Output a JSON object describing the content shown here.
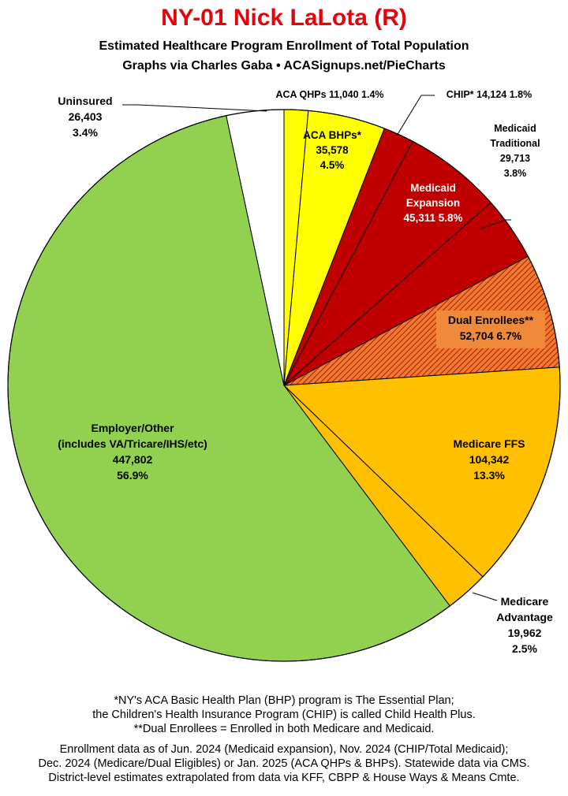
{
  "title": "NY-01 Nick LaLota (R)",
  "subtitle_line1": "Estimated Healthcare Program Enrollment of Total Population",
  "subtitle_line2": "Graphs via Charles Gaba   •   ACASignups.net/PieCharts",
  "colors": {
    "title": "#e8000b",
    "aca": "#ffff00",
    "medicaid": "#c00000",
    "dual": "#e06a2a",
    "medicare": "#ffc000",
    "employer": "#92d050",
    "uninsured": "#ffffff"
  },
  "chart_data": {
    "type": "pie",
    "start": "12 o'clock",
    "direction": "clockwise",
    "slices": [
      {
        "label": "ACA QHPs",
        "value": 11040,
        "pct": "1.4%",
        "color": "#ffff00",
        "lines": [
          "ACA QHPs 11,040 1.4%"
        ]
      },
      {
        "label": "ACA BHPs*",
        "value": 35578,
        "pct": "4.5%",
        "color": "#ffff00",
        "lines": [
          "ACA BHPs*",
          "35,578",
          "4.5%"
        ]
      },
      {
        "label": "CHIP*",
        "value": 14124,
        "pct": "1.8%",
        "color": "#c00000",
        "lines": [
          "CHIP* 14,124 1.8%"
        ]
      },
      {
        "label": "Medicaid Expansion",
        "value": 45311,
        "pct": "5.8%",
        "color": "#c00000",
        "lines": [
          "Medicaid",
          "Expansion",
          "45,311 5.8%"
        ]
      },
      {
        "label": "Medicaid Traditional",
        "value": 29713,
        "pct": "3.8%",
        "color": "#c00000",
        "lines": [
          "Medicaid",
          "Traditional",
          "29,713",
          "3.8%"
        ]
      },
      {
        "label": "Dual Enrollees**",
        "value": 52704,
        "pct": "6.7%",
        "color": "#e06a2a",
        "hatched": true,
        "lines": [
          "Dual Enrollees**",
          "52,704 6.7%"
        ]
      },
      {
        "label": "Medicare FFS",
        "value": 104342,
        "pct": "13.3%",
        "color": "#ffc000",
        "lines": [
          "Medicare FFS",
          "104,342",
          "13.3%"
        ]
      },
      {
        "label": "Medicare Advantage",
        "value": 19962,
        "pct": "2.5%",
        "color": "#ffc000",
        "lines": [
          "Medicare",
          "Advantage",
          "19,962",
          "2.5%"
        ]
      },
      {
        "label": "Employer/Other (includes VA/Tricare/IHS/etc)",
        "value": 447802,
        "pct": "56.9%",
        "color": "#92d050",
        "lines": [
          "Employer/Other",
          "(includes VA/Tricare/IHS/etc)",
          "447,802",
          "56.9%"
        ]
      },
      {
        "label": "Uninsured",
        "value": 26403,
        "pct": "3.4%",
        "color": "#ffffff",
        "lines": [
          "Uninsured",
          "26,403",
          "3.4%"
        ]
      }
    ]
  },
  "footnotes": {
    "line1": "*NY's ACA Basic Health Plan (BHP) program is The Essential Plan;",
    "line2": "the Children's Health Insurance Program (CHIP) is called Child Health Plus.",
    "line3": "**Dual Enrollees = Enrolled in both Medicare and Medicaid.",
    "line4": "Enrollment data as of Jun. 2024 (Medicaid expansion), Nov. 2024 (CHIP/Total Medicaid);",
    "line5": "Dec. 2024 (Medicare/Dual Eligibles) or Jan. 2025 (ACA QHPs & BHPs). Statewide data via CMS.",
    "line6": "District-level estimates extrapolated from data via KFF, CBPP & House Ways & Means Cmte."
  }
}
